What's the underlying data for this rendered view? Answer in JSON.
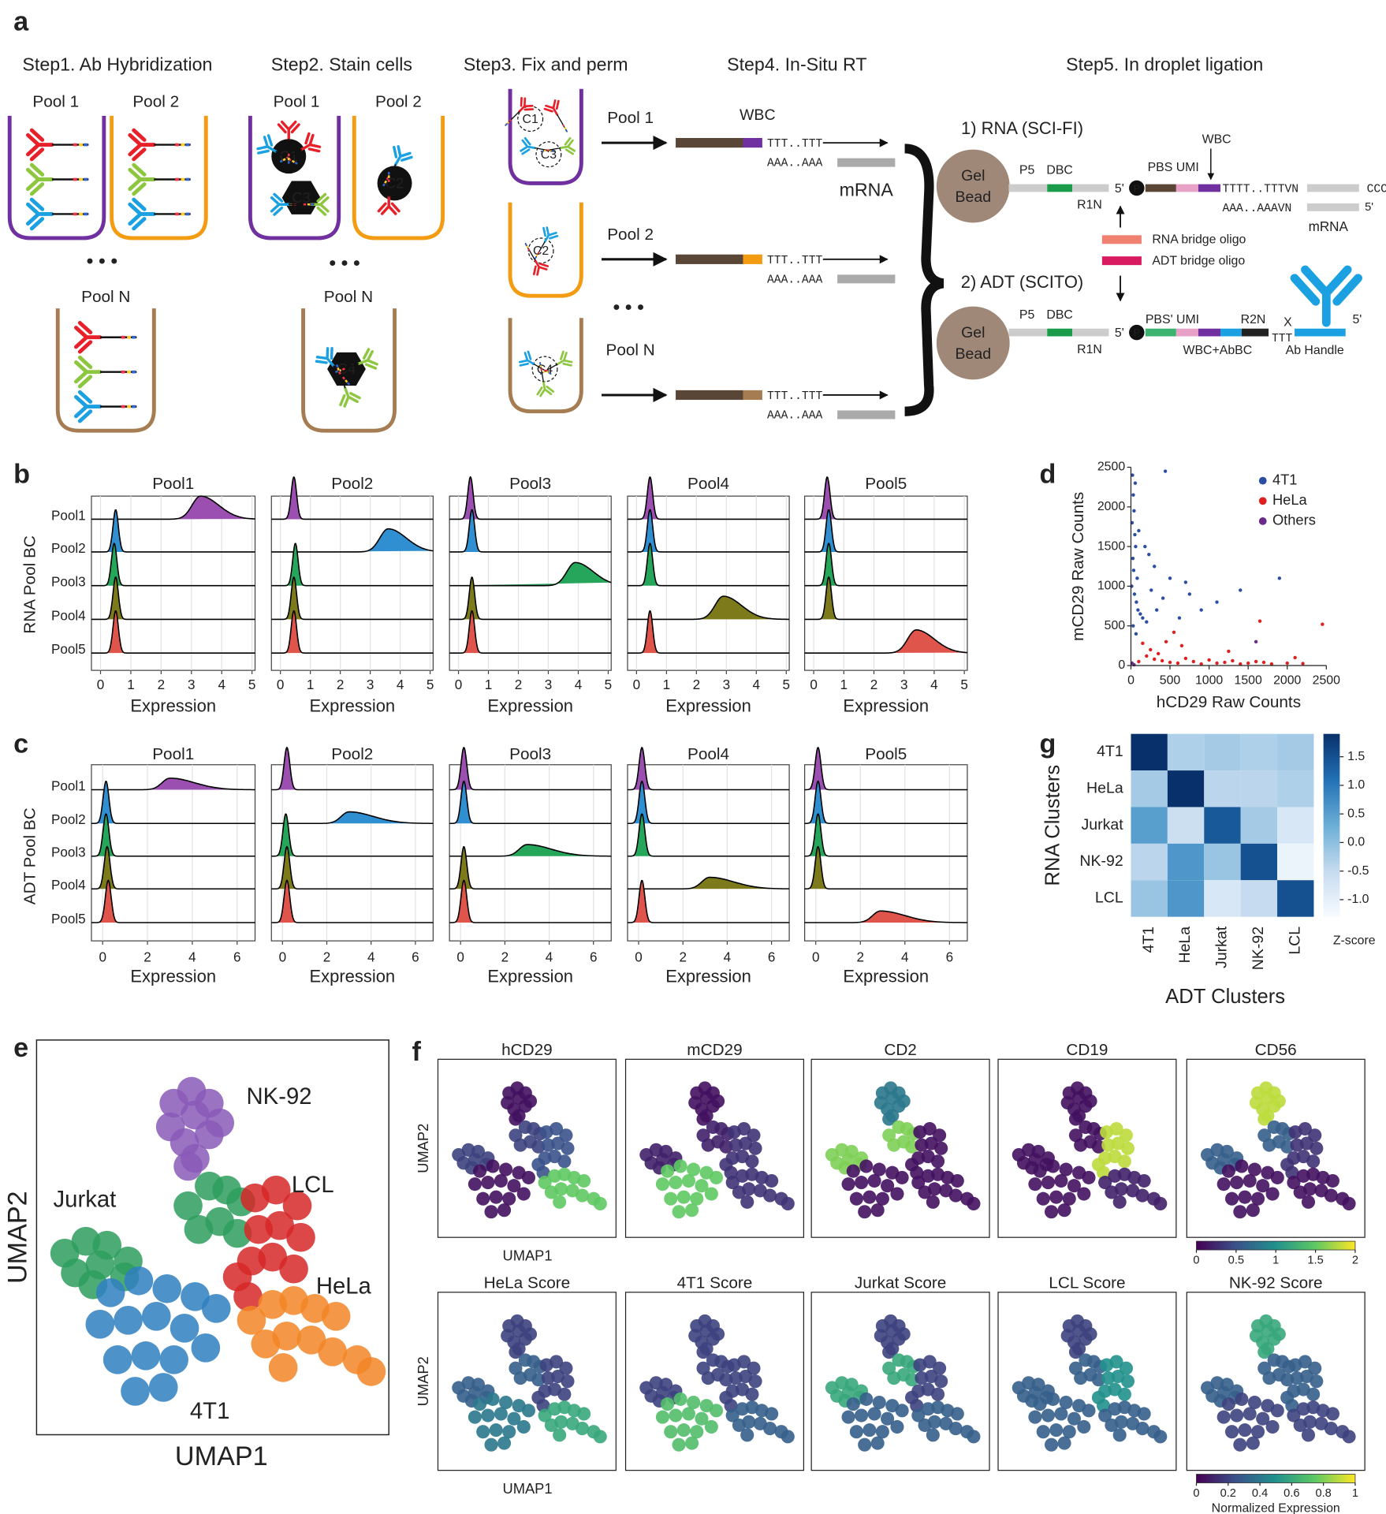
{
  "diagram": {
    "panel": "a",
    "steps": [
      "Step1. Ab Hybridization",
      "Step2. Stain cells",
      "Step3. Fix and perm",
      "Step4. In-Situ RT",
      "Step5. In droplet ligation"
    ],
    "pools": [
      "Pool 1",
      "Pool 2",
      "Pool N"
    ],
    "ellipsis": "• • •",
    "cells": [
      "C1",
      "C2",
      "C3",
      "C4"
    ],
    "rt": {
      "wbc": "WBC",
      "polyT": "TTT..TTT",
      "polyA": "AAA..AAA",
      "mrna": "mRNA"
    },
    "rna": {
      "title": "1) RNA (SCI-FI)",
      "bead": [
        "Gel",
        "Bead"
      ],
      "p5": "P5",
      "dbc": "DBC",
      "r1n": "R1N",
      "five": "5'",
      "p": "P",
      "pbs_umi": "PBS  UMI",
      "wbc": "WBC",
      "polyT": "TTTT..TTTVN",
      "polyA": "AAA..AAAVN",
      "ccc": "CCC",
      "five_end": "5'",
      "mrna": "mRNA"
    },
    "bridges": [
      "RNA bridge oligo",
      "ADT bridge oligo"
    ],
    "adt": {
      "title": "2) ADT (SCITO)",
      "pbs_umi": "PBS' UMI",
      "r2n": "R2N",
      "wbc_abbc": "WBC+AbBC",
      "x": "X",
      "ttt": "TTT",
      "five_end": "5'",
      "handle": "Ab Handle"
    }
  },
  "chart_data": [
    {
      "type": "ridgeline",
      "panel": "b",
      "ylabel": "RNA Pool BC",
      "xlabel": "Expression",
      "rows": [
        "Pool1",
        "Pool2",
        "Pool3",
        "Pool4",
        "Pool5"
      ],
      "colors": [
        "#9b4fb0",
        "#2f8fd0",
        "#26a65b",
        "#7c7a1a",
        "#e0554b"
      ],
      "xlim": [
        -0.3,
        5.1
      ],
      "xticks": [
        0,
        1,
        2,
        3,
        4,
        5
      ],
      "grid": true,
      "facets": [
        {
          "title": "Pool1",
          "modes": [
            3.3,
            0.5,
            0.45,
            0.5,
            0.5
          ]
        },
        {
          "title": "Pool2",
          "modes": [
            0.45,
            3.6,
            0.5,
            0.45,
            0.45
          ]
        },
        {
          "title": "Pool3",
          "modes": [
            0.4,
            0.45,
            3.9,
            0.45,
            0.45
          ]
        },
        {
          "title": "Pool4",
          "modes": [
            0.45,
            0.45,
            0.45,
            2.9,
            0.45
          ]
        },
        {
          "title": "Pool5",
          "modes": [
            0.45,
            0.5,
            0.5,
            0.5,
            3.4
          ]
        }
      ]
    },
    {
      "type": "ridgeline",
      "panel": "c",
      "ylabel": "ADT Pool BC",
      "xlabel": "Expression",
      "rows": [
        "Pool1",
        "Pool2",
        "Pool3",
        "Pool4",
        "Pool5"
      ],
      "colors": [
        "#9b4fb0",
        "#2f8fd0",
        "#26a65b",
        "#7c7a1a",
        "#e0554b"
      ],
      "xlim": [
        -0.5,
        6.8
      ],
      "xticks": [
        0,
        2,
        4,
        6
      ],
      "grid": true,
      "facets": [
        {
          "title": "Pool1",
          "modes": [
            3.0,
            0.15,
            0.15,
            0.2,
            0.25
          ]
        },
        {
          "title": "Pool2",
          "modes": [
            0.2,
            3.0,
            0.15,
            0.2,
            0.2
          ]
        },
        {
          "title": "Pool3",
          "modes": [
            0.15,
            0.15,
            3.0,
            0.15,
            0.15
          ]
        },
        {
          "title": "Pool4",
          "modes": [
            0.15,
            0.15,
            0.15,
            3.2,
            0.15
          ]
        },
        {
          "title": "Pool5",
          "modes": [
            0.1,
            0.1,
            0.1,
            0.1,
            2.9
          ]
        }
      ]
    },
    {
      "type": "scatter",
      "panel": "d",
      "xlabel": "hCD29 Raw Counts",
      "ylabel": "mCD29 Raw Counts",
      "xlim": [
        0,
        2500
      ],
      "ylim": [
        0,
        2500
      ],
      "xticks": [
        0,
        500,
        1000,
        1500,
        2000,
        2500
      ],
      "yticks": [
        0,
        500,
        1000,
        1500,
        2000,
        2500
      ],
      "legend": "upper right",
      "series": [
        {
          "name": "4T1",
          "color": "#2b4ea2",
          "x": [
            20,
            30,
            40,
            15,
            50,
            60,
            25,
            35,
            80,
            10,
            45,
            70,
            90,
            120,
            150,
            200,
            260,
            330,
            410,
            500,
            620,
            750,
            900,
            1100,
            1400,
            1900,
            300,
            180,
            55,
            28,
            65,
            100,
            230,
            440,
            700
          ],
          "y": [
            2400,
            2150,
            1950,
            1800,
            1650,
            1500,
            1350,
            1200,
            1100,
            1000,
            900,
            800,
            700,
            650,
            600,
            550,
            950,
            700,
            850,
            1100,
            600,
            900,
            700,
            800,
            950,
            1100,
            1250,
            1500,
            2300,
            500,
            400,
            1700,
            1400,
            2450,
            1050
          ]
        },
        {
          "name": "HeLa",
          "color": "#e02020",
          "x": [
            100,
            200,
            300,
            400,
            500,
            600,
            700,
            800,
            900,
            1000,
            1100,
            1200,
            1300,
            1400,
            1500,
            1600,
            1700,
            1800,
            2000,
            2200,
            2450,
            150,
            250,
            350,
            450,
            550,
            650,
            1250,
            1650,
            2100
          ],
          "y": [
            50,
            120,
            80,
            60,
            40,
            30,
            90,
            50,
            20,
            70,
            30,
            40,
            60,
            20,
            30,
            50,
            40,
            20,
            30,
            25,
            520,
            280,
            200,
            150,
            300,
            420,
            250,
            180,
            560,
            100
          ]
        },
        {
          "name": "Others",
          "color": "#6a2a8a",
          "x": [
            15,
            40,
            1600
          ],
          "y": [
            30,
            10,
            300
          ]
        }
      ]
    },
    {
      "type": "umap",
      "panel": "e",
      "xlabel": "UMAP1",
      "ylabel": "UMAP2",
      "xlim": [
        0,
        10
      ],
      "ylim": [
        0,
        10
      ],
      "series": [
        {
          "name": "NK-92",
          "color": "#8a5bb8",
          "x": [
            3.9,
            4.4,
            4.9,
            5.2,
            3.8,
            4.5,
            4.2,
            4.9,
            4.5,
            4.3
          ],
          "y": [
            8.4,
            8.7,
            8.4,
            7.9,
            7.8,
            8.1,
            7.4,
            7.6,
            7.0,
            6.8
          ]
        },
        {
          "name": "Jurkat",
          "color": "#2e9e5e",
          "x": [
            0.8,
            1.4,
            2.0,
            2.6,
            1.1,
            1.8,
            2.5,
            1.6,
            4.3,
            4.9,
            5.4,
            5.8,
            4.6,
            5.2,
            5.7
          ],
          "y": [
            4.6,
            4.9,
            4.8,
            4.4,
            4.1,
            4.3,
            4.0,
            3.8,
            5.8,
            6.3,
            6.2,
            5.9,
            5.2,
            5.4,
            5.1
          ]
        },
        {
          "name": "LCL",
          "color": "#d62728",
          "x": [
            6.2,
            6.8,
            7.4,
            6.3,
            6.9,
            7.5,
            6.1,
            6.7,
            7.3,
            5.7,
            6.0
          ],
          "y": [
            6.0,
            6.2,
            5.8,
            5.2,
            5.3,
            5.0,
            4.4,
            4.5,
            4.2,
            4.0,
            3.5
          ]
        },
        {
          "name": "HeLa",
          "color": "#f28527",
          "x": [
            6.1,
            6.7,
            7.3,
            7.9,
            8.5,
            6.5,
            7.1,
            7.8,
            8.4,
            9.1,
            9.5,
            7.0
          ],
          "y": [
            2.9,
            3.3,
            3.4,
            3.2,
            3.0,
            2.3,
            2.5,
            2.4,
            2.1,
            1.9,
            1.6,
            1.7
          ]
        },
        {
          "name": "4T1",
          "color": "#2f7fc1",
          "x": [
            2.1,
            2.9,
            3.7,
            4.5,
            5.1,
            1.8,
            2.6,
            3.4,
            4.2,
            2.3,
            3.1,
            3.9,
            2.8,
            3.6,
            4.8
          ],
          "y": [
            3.6,
            3.9,
            3.7,
            3.5,
            3.2,
            2.8,
            2.9,
            3.0,
            2.7,
            1.9,
            2.0,
            1.9,
            1.1,
            1.2,
            2.2
          ]
        }
      ]
    },
    {
      "type": "feature_umap",
      "panel": "f",
      "xlabel": "UMAP1",
      "ylabel": "UMAP2",
      "colormap": "viridis",
      "rows": [
        {
          "clim": [
            0,
            2
          ],
          "cbar_ticks": [
            0,
            0.5,
            1,
            1.5,
            2
          ],
          "panels": [
            {
              "title": "hCD29",
              "values": [
                0.1,
                0.4,
                0.5,
                1.5,
                0.1
              ]
            },
            {
              "title": "mCD29",
              "values": [
                0.1,
                0.2,
                0.3,
                0.3,
                1.5
              ]
            },
            {
              "title": "CD2",
              "values": [
                0.8,
                1.6,
                0.1,
                0.1,
                0.1
              ]
            },
            {
              "title": "CD19",
              "values": [
                0.1,
                0.1,
                1.8,
                0.2,
                0.1
              ]
            },
            {
              "title": "CD56",
              "values": [
                1.8,
                0.6,
                0.3,
                0.1,
                0.1
              ]
            }
          ]
        },
        {
          "clim": [
            0,
            1
          ],
          "cbar_ticks": [
            0,
            0.2,
            0.4,
            0.6,
            0.8,
            1
          ],
          "cbar_label": "Normalized Expression",
          "panels": [
            {
              "title": "HeLa Score",
              "values": [
                0.2,
                0.3,
                0.2,
                0.6,
                0.4
              ]
            },
            {
              "title": "4T1 Score",
              "values": [
                0.2,
                0.2,
                0.2,
                0.3,
                0.7
              ]
            },
            {
              "title": "Jurkat Score",
              "values": [
                0.2,
                0.6,
                0.2,
                0.3,
                0.3
              ]
            },
            {
              "title": "LCL Score",
              "values": [
                0.2,
                0.3,
                0.5,
                0.3,
                0.3
              ]
            },
            {
              "title": "NK-92 Score",
              "values": [
                0.6,
                0.3,
                0.3,
                0.2,
                0.2
              ]
            }
          ]
        }
      ]
    },
    {
      "type": "heatmap",
      "panel": "g",
      "xlabel": "ADT Clusters",
      "ylabel": "RNA Clusters",
      "colormap": "Blues",
      "x_categories": [
        "4T1",
        "HeLa",
        "Jurkat",
        "NK-92",
        "LCL"
      ],
      "y_categories": [
        "4T1",
        "HeLa",
        "Jurkat",
        "NK-92",
        "LCL"
      ],
      "values": [
        [
          1.9,
          -0.3,
          -0.2,
          -0.3,
          -0.2
        ],
        [
          -0.2,
          1.9,
          -0.4,
          -0.4,
          -0.3
        ],
        [
          0.5,
          -0.6,
          1.4,
          -0.2,
          -0.8
        ],
        [
          -0.4,
          0.6,
          -0.1,
          1.5,
          -1.1
        ],
        [
          -0.1,
          0.6,
          -0.8,
          -0.5,
          1.5
        ]
      ],
      "clim": [
        -1.3,
        1.9
      ],
      "cbar_ticks": [
        {
          "value": 1.5,
          "label": "1.5"
        },
        {
          "value": 1.0,
          "label": "1.0"
        },
        {
          "value": 0.5,
          "label": "0.5"
        },
        {
          "value": 0.0,
          "label": "0.0"
        },
        {
          "value": -0.5,
          "label": "-0.5"
        },
        {
          "value": -1.0,
          "label": "-1.0"
        }
      ],
      "cbar_label": "Z-score"
    }
  ]
}
